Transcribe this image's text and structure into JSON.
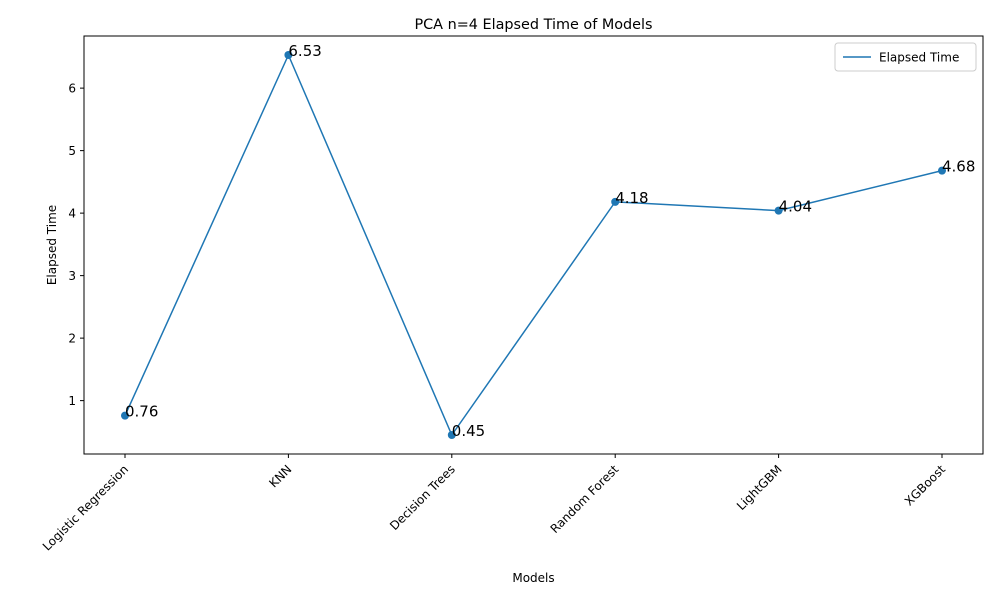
{
  "chart_data": {
    "type": "line",
    "title": "PCA n=4  Elapsed Time of Models",
    "xlabel": "Models",
    "ylabel": "Elapsed Time",
    "categories": [
      "Logistic Regression",
      "KNN",
      "Decision Trees",
      "Random Forest",
      "LightGBM",
      "XGBoost"
    ],
    "series": [
      {
        "name": "Elapsed Time",
        "values": [
          0.76,
          6.53,
          0.45,
          4.18,
          4.04,
          4.68
        ],
        "data_labels": [
          "0.76",
          "6.53",
          "0.45",
          "4.18",
          "4.04",
          "4.68"
        ],
        "color": "#1f77b4",
        "marker": "circle"
      }
    ],
    "ylim": [
      0.146,
      6.834
    ],
    "yticks": [
      1,
      2,
      3,
      4,
      5,
      6
    ],
    "grid": false,
    "legend_position": "upper right"
  }
}
